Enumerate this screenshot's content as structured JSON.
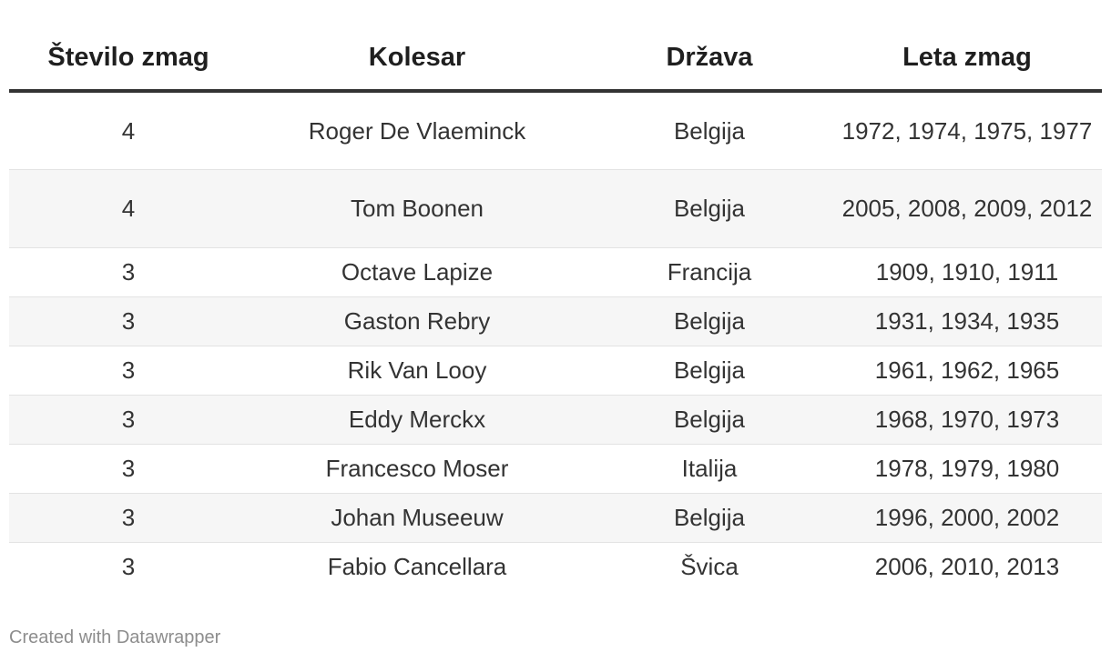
{
  "chart_data": {
    "type": "table",
    "columns": [
      "Število zmag",
      "Kolesar",
      "Država",
      "Leta zmag"
    ],
    "rows": [
      [
        "4",
        "Roger De Vlaeminck",
        "Belgija",
        "1972, 1974, 1975, 1977"
      ],
      [
        "4",
        "Tom Boonen",
        "Belgija",
        "2005, 2008, 2009, 2012"
      ],
      [
        "3",
        "Octave Lapize",
        "Francija",
        "1909, 1910, 1911"
      ],
      [
        "3",
        "Gaston Rebry",
        "Belgija",
        "1931, 1934, 1935"
      ],
      [
        "3",
        "Rik Van Looy",
        "Belgija",
        "1961, 1962, 1965"
      ],
      [
        "3",
        "Eddy Merckx",
        "Belgija",
        "1968, 1970, 1973"
      ],
      [
        "3",
        "Francesco Moser",
        "Italija",
        "1978, 1979, 1980"
      ],
      [
        "3",
        "Johan Museeuw",
        "Belgija",
        "1996, 2000, 2002"
      ],
      [
        "3",
        "Fabio Cancellara",
        "Švica",
        "2006, 2010, 2013"
      ]
    ]
  },
  "footer": {
    "credit": "Created with Datawrapper"
  },
  "colors": {
    "header_rule": "#333333",
    "row_stripe": "#f6f6f6",
    "text": "#333333",
    "footer_text": "#8d8d8d"
  }
}
